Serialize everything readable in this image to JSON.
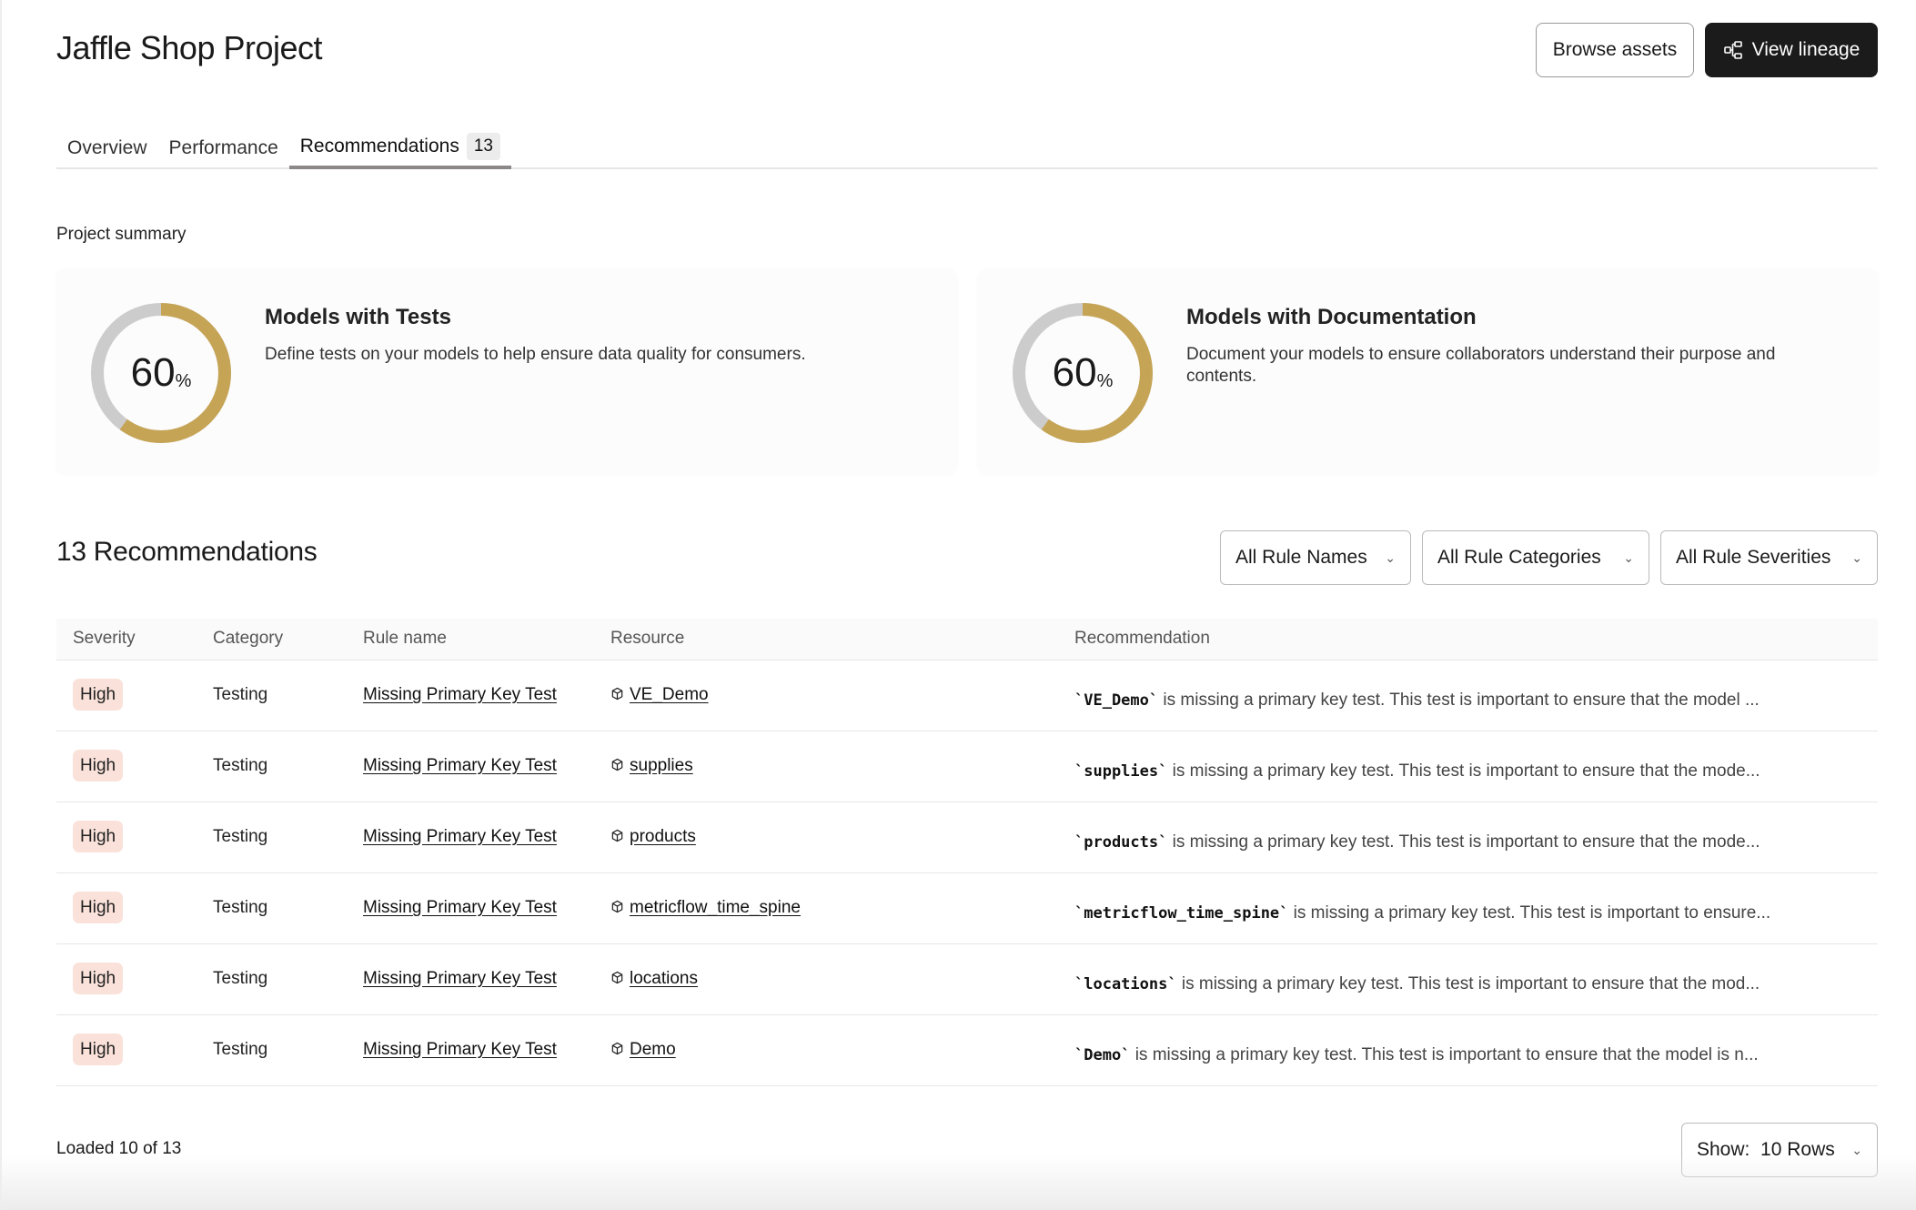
{
  "header": {
    "title": "Jaffle Shop Project",
    "browse_label": "Browse assets",
    "lineage_label": "View lineage"
  },
  "tabs": [
    {
      "label": "Overview"
    },
    {
      "label": "Performance"
    },
    {
      "label": "Recommendations",
      "count": "13",
      "active": true
    }
  ],
  "summary": {
    "heading": "Project summary",
    "cards": [
      {
        "title": "Models with Tests",
        "description": "Define tests on your models to help ensure data quality for consumers.",
        "percent": 60,
        "percent_label": "60"
      },
      {
        "title": "Models with Documentation",
        "description": "Document your models to ensure collaborators understand their purpose and contents.",
        "percent": 60,
        "percent_label": "60"
      }
    ],
    "percent_sign": "%",
    "colors": {
      "fill": "#c6a456",
      "track": "#cccccc"
    }
  },
  "recommendations": {
    "title": "13 Recommendations",
    "filters": [
      "All Rule Names",
      "All Rule Categories",
      "All Rule Severities"
    ],
    "columns": [
      "Severity",
      "Category",
      "Rule name",
      "Resource",
      "Recommendation"
    ],
    "rows": [
      {
        "severity": "High",
        "category": "Testing",
        "rule": "Missing Primary Key Test",
        "resource": "VE_Demo",
        "code": "`VE_Demo`",
        "text": " is missing a primary key test. This test is important to ensure that the model ..."
      },
      {
        "severity": "High",
        "category": "Testing",
        "rule": "Missing Primary Key Test",
        "resource": "supplies",
        "code": "`supplies`",
        "text": " is missing a primary key test. This test is important to ensure that the mode..."
      },
      {
        "severity": "High",
        "category": "Testing",
        "rule": "Missing Primary Key Test",
        "resource": "products",
        "code": "`products`",
        "text": " is missing a primary key test. This test is important to ensure that the mode..."
      },
      {
        "severity": "High",
        "category": "Testing",
        "rule": "Missing Primary Key Test",
        "resource": "metricflow_time_spine",
        "code": "`metricflow_time_spine`",
        "text": " is missing a primary key test. This test is important to ensure..."
      },
      {
        "severity": "High",
        "category": "Testing",
        "rule": "Missing Primary Key Test",
        "resource": "locations",
        "code": "`locations`",
        "text": " is missing a primary key test. This test is important to ensure that the mod..."
      },
      {
        "severity": "High",
        "category": "Testing",
        "rule": "Missing Primary Key Test",
        "resource": "Demo",
        "code": "`Demo`",
        "text": " is missing a primary key test. This test is important to ensure that the model is n..."
      }
    ],
    "loaded": "Loaded 10 of 13",
    "show_label": "Show:",
    "show_value": "10 Rows"
  }
}
